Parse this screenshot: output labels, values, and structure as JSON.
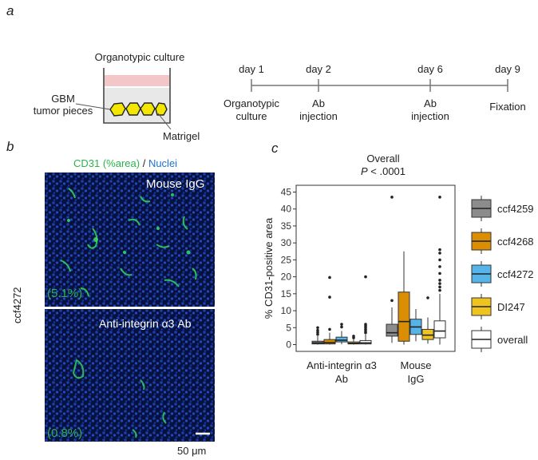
{
  "panel_a": {
    "letter": "a",
    "culture_title": "Organotypic culture",
    "label_tumor": [
      "GBM",
      "tumor pieces"
    ],
    "label_matrigel": "Matrigel",
    "timeline": [
      {
        "day": "day 1",
        "event": [
          "Organotypic",
          "culture"
        ]
      },
      {
        "day": "day 2",
        "event": [
          "Ab",
          "injection"
        ]
      },
      {
        "day": "day 6",
        "event": [
          "Ab",
          "injection"
        ]
      },
      {
        "day": "day 9",
        "event": [
          "Fixation"
        ]
      }
    ]
  },
  "panel_b": {
    "letter": "b",
    "title_cd31": "CD31 (%area)",
    "title_sep": " / ",
    "title_nuclei": "Nuclei",
    "side_label": "ccf4272",
    "top_label": "Mouse IgG",
    "top_pct": "(5.1%)",
    "bottom_label": "Anti-integrin α3 Ab",
    "bottom_pct": "(0.8%)",
    "scale_label": "50 μm",
    "colors": {
      "cd31": "#2bb24c",
      "nuclei": "#1f6fd1"
    }
  },
  "panel_c": {
    "letter": "c",
    "overall_title": "Overall",
    "p_label": "P",
    "p_value": " < .0001"
  },
  "chart_data": {
    "type": "box",
    "ylabel": "% CD31-positive area",
    "ylim": [
      -2,
      47
    ],
    "yticks": [
      0,
      5,
      10,
      15,
      20,
      25,
      30,
      35,
      40,
      45
    ],
    "categories": [
      [
        "Anti-integrin α3",
        "Ab"
      ],
      [
        "Mouse",
        "IgG"
      ]
    ],
    "legend_position": "right",
    "series": [
      {
        "name": "ccf4259",
        "color": "#8c8c8c",
        "boxes": [
          {
            "q1": 0.2,
            "median": 0.5,
            "q3": 1.0,
            "lo": 0,
            "hi": 2.5,
            "outliers": [
              3,
              3.6,
              4.2,
              5
            ]
          },
          {
            "q1": 2.5,
            "median": 3.5,
            "q3": 6.0,
            "lo": 0.5,
            "hi": 11,
            "outliers": [
              13,
              43.5
            ]
          }
        ]
      },
      {
        "name": "ccf4268",
        "color": "#d98e04",
        "boxes": [
          {
            "q1": 0.2,
            "median": 0.6,
            "q3": 1.5,
            "lo": 0,
            "hi": 3.5,
            "outliers": [
              4.5,
              14,
              19.8
            ]
          },
          {
            "q1": 1.0,
            "median": 6.8,
            "q3": 15.5,
            "lo": 0,
            "hi": 27.5,
            "outliers": []
          }
        ]
      },
      {
        "name": "ccf4272",
        "color": "#56b4e9",
        "boxes": [
          {
            "q1": 0.8,
            "median": 1.3,
            "q3": 2.2,
            "lo": 0.1,
            "hi": 4,
            "outliers": [
              5.2,
              6
            ]
          },
          {
            "q1": 3.0,
            "median": 5.2,
            "q3": 7.5,
            "lo": 1,
            "hi": 10.5,
            "outliers": []
          }
        ]
      },
      {
        "name": "DI247",
        "color": "#f0c420",
        "boxes": [
          {
            "q1": 0.2,
            "median": 0.4,
            "q3": 0.8,
            "lo": 0,
            "hi": 1.5,
            "outliers": [
              2,
              2.5
            ]
          },
          {
            "q1": 1.5,
            "median": 2.8,
            "q3": 4.5,
            "lo": 0.3,
            "hi": 8,
            "outliers": [
              13.8
            ]
          }
        ]
      },
      {
        "name": "overall",
        "color": "#ffffff",
        "boxes": [
          {
            "q1": 0.2,
            "median": 0.5,
            "q3": 1.2,
            "lo": 0,
            "hi": 3,
            "outliers": [
              3.5,
              4,
              4.5,
              5,
              5.5,
              6,
              20
            ]
          },
          {
            "q1": 2.0,
            "median": 4.0,
            "q3": 7.0,
            "lo": 0,
            "hi": 15,
            "outliers": [
              16,
              17,
              18,
              19,
              21,
              23,
              25,
              27,
              28,
              43.5
            ]
          }
        ]
      }
    ]
  }
}
